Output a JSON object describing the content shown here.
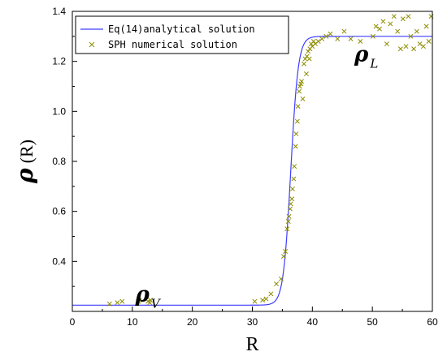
{
  "chart_data": {
    "type": "scatter",
    "xlabel": "R",
    "ylabel": {
      "symbol": "ρ",
      "arg": "(R)"
    },
    "xlim": [
      0,
      60
    ],
    "ylim": [
      0.2,
      1.4
    ],
    "xticks": [
      0,
      10,
      20,
      30,
      40,
      50,
      60
    ],
    "yticks": [
      0.4,
      0.6,
      0.8,
      1.0,
      1.2,
      1.4
    ],
    "xtick_labels": [
      "0",
      "10",
      "20",
      "30",
      "40",
      "50",
      "60"
    ],
    "ytick_labels": [
      "0.4",
      "0.6",
      "0.8",
      "1.0",
      "1.2",
      "1.4"
    ],
    "grid": false,
    "legend_position": "top-left",
    "annotations": [
      {
        "main": "ρ",
        "sub": "L",
        "x": 47,
        "y": 1.2
      },
      {
        "main": "ρ",
        "sub": "V",
        "x": 10.5,
        "y": 0.24
      }
    ],
    "series": [
      {
        "name": "Eq(14)analytical solution",
        "kind": "line",
        "color": "#3d3dff",
        "model": {
          "type": "tanh",
          "low": 0.225,
          "high": 1.3,
          "center": 36.4,
          "width": 1.25
        },
        "x_range": [
          0,
          60
        ]
      },
      {
        "name": "SPH numerical solution",
        "kind": "scatter",
        "marker": "x",
        "color": "#8c8c00",
        "x": [
          6.2,
          7.5,
          8.3,
          11.0,
          11.2,
          12.6,
          12.9,
          13.0,
          30.4,
          31.7,
          32.3,
          33.1,
          34.0,
          34.8,
          35.2,
          35.5,
          35.8,
          36.0,
          36.1,
          36.3,
          36.4,
          36.6,
          36.7,
          36.9,
          37.0,
          37.2,
          37.3,
          37.5,
          37.6,
          37.8,
          37.9,
          38.1,
          38.2,
          38.4,
          38.6,
          38.8,
          39.0,
          39.1,
          39.3,
          39.5,
          39.6,
          39.8,
          40.0,
          40.2,
          40.5,
          41.0,
          41.6,
          42.3,
          43.0,
          44.2,
          45.3,
          46.4,
          48.0,
          50.1,
          50.6,
          51.2,
          51.8,
          52.4,
          53.0,
          53.6,
          54.2,
          54.7,
          55.1,
          55.6,
          56.0,
          56.4,
          56.9,
          57.4,
          57.9,
          58.5,
          59.0,
          59.4,
          59.8
        ],
        "y": [
          0.23,
          0.235,
          0.24,
          0.24,
          0.245,
          0.24,
          0.235,
          0.245,
          0.24,
          0.245,
          0.25,
          0.27,
          0.31,
          0.33,
          0.42,
          0.44,
          0.53,
          0.56,
          0.58,
          0.61,
          0.63,
          0.65,
          0.69,
          0.73,
          0.78,
          0.86,
          0.91,
          0.96,
          1.02,
          1.08,
          1.1,
          1.11,
          1.12,
          1.05,
          1.19,
          1.21,
          1.15,
          1.22,
          1.24,
          1.21,
          1.25,
          1.27,
          1.26,
          1.28,
          1.27,
          1.28,
          1.29,
          1.3,
          1.31,
          1.29,
          1.32,
          1.29,
          1.28,
          1.3,
          1.34,
          1.33,
          1.36,
          1.27,
          1.35,
          1.38,
          1.32,
          1.25,
          1.37,
          1.26,
          1.38,
          1.3,
          1.25,
          1.32,
          1.27,
          1.26,
          1.34,
          1.28,
          1.38
        ]
      }
    ]
  }
}
